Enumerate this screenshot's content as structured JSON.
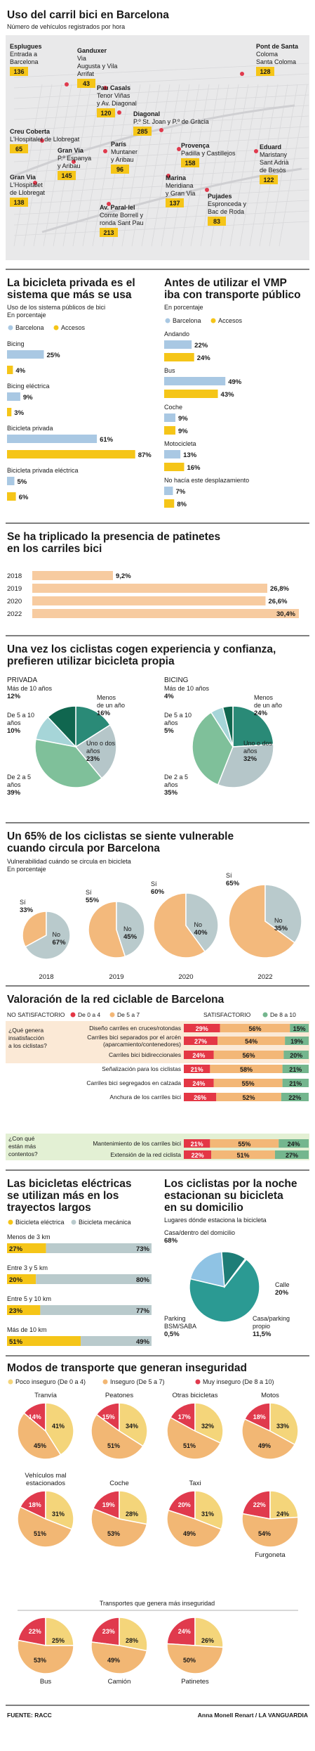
{
  "colors": {
    "barcelona": "#a9c8e3",
    "accesos": "#f5c518",
    "map_bg": "#e9e9ea",
    "pos1": "#f4d57a",
    "pos2": "#f2b774",
    "pos3": "#e03a4d",
    "p_dark": "#10664f",
    "p_mid": "#2a8a77",
    "p_light": "#a6d5d8",
    "p_green": "#7fc09a",
    "p_grey": "#b5c6c9",
    "peach": "#f7cba0",
    "vuln_orange": "#f3b97c",
    "vuln_grey": "#b9cacc",
    "red": "#e43745",
    "orange": "#f3b777",
    "green": "#74b68e",
    "tealdk": "#1e7d77",
    "tealmd": "#2b9a93",
    "blue": "#8fc3e4"
  },
  "s1": {
    "title": "Uso del carril bici en Barcelona",
    "subtitle": "Número de vehículos registrados por hora",
    "labels": [
      {
        "name": "Esplugues",
        "lines": [
          "Entrada a",
          "Barcelona"
        ],
        "value": "136"
      },
      {
        "name": "Ganduxer",
        "lines": [
          "Via",
          "Augusta y Vila",
          "Arrifat"
        ],
        "value": "43"
      },
      {
        "name": "Pau Casals",
        "lines": [
          "Tenor Viñas",
          "y Av. Diagonal"
        ],
        "value": "120"
      },
      {
        "name": "Diagonal",
        "lines": [
          "P.º St. Joan y P.º de Gràcia"
        ],
        "value": "285"
      },
      {
        "name": "Pont de Santa",
        "lines": [
          "Coloma",
          "Santa Coloma"
        ],
        "value": "128"
      },
      {
        "name": "Creu Coberta",
        "lines": [
          "L'Hospitalet de Llobregat"
        ],
        "value": "65"
      },
      {
        "name": "Gran Via",
        "lines": [
          "P.º Espanya",
          "y Aribau"
        ],
        "value": "145"
      },
      {
        "name": "París",
        "lines": [
          "Muntaner",
          "y Aribau"
        ],
        "value": "96"
      },
      {
        "name": "Provença",
        "lines": [
          "Padilla y Castillejos"
        ],
        "value": "158"
      },
      {
        "name": "Eduard",
        "lines": [
          "Maristany",
          "Sant Adrià",
          "de Besòs"
        ],
        "value": "122"
      },
      {
        "name": "Gran Via",
        "lines": [
          "L'Hospitalet",
          "de Llobregat"
        ],
        "value": "138"
      },
      {
        "name": "Marina",
        "lines": [
          "Meridiana",
          "y Gran Via"
        ],
        "value": "137"
      },
      {
        "name": "Pujades",
        "lines": [
          "Espronceda y",
          "Bac de Roda"
        ],
        "value": "83"
      },
      {
        "name": "Av. Paral·lel",
        "lines": [
          "Comte Borrell y",
          "ronda Sant Pau"
        ],
        "value": "213"
      }
    ]
  },
  "s2": {
    "title": [
      "La bicicleta privada es el",
      "sistema que más se usa"
    ],
    "subtitle": [
      "Uso de los sistema públicos de bici",
      "En porcentaje"
    ],
    "legend": [
      "Barcelona",
      "Accesos"
    ],
    "chart_data": {
      "type": "bar",
      "categories": [
        "Bicing",
        "Bicing eléctrica",
        "Bicicleta privada",
        "Bicicleta privada eléctrica"
      ],
      "series": [
        {
          "name": "Barcelona",
          "values": [
            25,
            9,
            61,
            5
          ]
        },
        {
          "name": "Accesos",
          "values": [
            4,
            3,
            87,
            6
          ]
        }
      ],
      "labels": [
        [
          "25%",
          "4%"
        ],
        [
          "9%",
          "3%"
        ],
        [
          "61%",
          "87%"
        ],
        [
          "5%",
          "6%"
        ]
      ]
    }
  },
  "s3": {
    "title": [
      "Antes de utilizar el VMP",
      "iba con transporte público"
    ],
    "subtitle": "En porcentaje",
    "legend": [
      "Barcelona",
      "Accesos"
    ],
    "chart_data": {
      "type": "bar",
      "categories": [
        "Andando",
        "Bus",
        "Coche",
        "Motocicleta",
        "No hacía este desplazamiento"
      ],
      "series": [
        {
          "name": "Barcelona",
          "values": [
            22,
            49,
            9,
            13,
            7
          ]
        },
        {
          "name": "Accesos",
          "values": [
            24,
            43,
            9,
            16,
            8
          ]
        }
      ],
      "labels": [
        [
          "22%",
          "24%"
        ],
        [
          "49%",
          "43%"
        ],
        [
          "9%",
          "9%"
        ],
        [
          "13%",
          "16%"
        ],
        [
          "7%",
          "8%"
        ]
      ]
    }
  },
  "s4": {
    "title": [
      "Se ha triplicado la presencia de patinetes",
      "en los carriles bici"
    ],
    "chart_data": {
      "type": "bar",
      "categories": [
        "2018",
        "2019",
        "2020",
        "2022"
      ],
      "values": [
        9.2,
        26.8,
        26.6,
        30.4
      ],
      "labels": [
        "9,2%",
        "26,8%",
        "26,6%",
        "30,4%"
      ]
    }
  },
  "s5": {
    "title": [
      "Una vez los ciclistas cogen experiencia y confianza,",
      "prefieren utilizar bicicleta propia"
    ],
    "chart_data": [
      {
        "type": "pie",
        "title": "PRIVADA",
        "slices": [
          {
            "label": [
              "Menos",
              "de un año"
            ],
            "value": 16,
            "text": "16%"
          },
          {
            "label": [
              "Uno o dos",
              "años"
            ],
            "value": 23,
            "text": "23%"
          },
          {
            "label": [
              "De 2 a 5",
              "años"
            ],
            "value": 39,
            "text": "39%"
          },
          {
            "label": [
              "De 5 a 10",
              "años"
            ],
            "value": 10,
            "text": "10%"
          },
          {
            "label": [
              "Más de 10 años"
            ],
            "value": 12,
            "text": "12%"
          }
        ]
      },
      {
        "type": "pie",
        "title": "BICING",
        "slices": [
          {
            "label": [
              "Menos",
              "de un año"
            ],
            "value": 24,
            "text": "24%"
          },
          {
            "label": [
              "Uno o dos",
              "años"
            ],
            "value": 32,
            "text": "32%"
          },
          {
            "label": [
              "De 2 a 5",
              "años"
            ],
            "value": 35,
            "text": "35%"
          },
          {
            "label": [
              "De 5 a 10",
              "años"
            ],
            "value": 5,
            "text": "5%"
          },
          {
            "label": [
              "Más de 10 años"
            ],
            "value": 4,
            "text": "4%"
          }
        ]
      }
    ]
  },
  "s6": {
    "title": [
      "Un 65% de los ciclistas se siente vulnerable",
      "cuando circula por Barcelona"
    ],
    "subtitle": [
      "Vulnerabilidad cuándo se circula en bicicleta",
      "En porcentaje"
    ],
    "chart_data": {
      "type": "pie",
      "categories": [
        "2018",
        "2019",
        "2020",
        "2022"
      ],
      "series": [
        {
          "name": "Sí",
          "values": [
            33,
            55,
            60,
            65
          ]
        },
        {
          "name": "No",
          "values": [
            67,
            45,
            40,
            35
          ]
        }
      ],
      "si_label": "Sí",
      "no_label": "No",
      "labels": [
        [
          "33%",
          "67%"
        ],
        [
          "55%",
          "45%"
        ],
        [
          "60%",
          "40%"
        ],
        [
          "65%",
          "35%"
        ]
      ]
    }
  },
  "s7": {
    "title": "Valoración de la red ciclable de Barcelona",
    "legend": [
      "NO SATISFACTORIO",
      "De 0 a 4",
      "De 5 a 7",
      "SATISFACTORIO",
      "De 8 a 10"
    ],
    "q1": [
      "¿Qué genera",
      "insatisfacción",
      "a los ciclistas?"
    ],
    "q2": [
      "¿Con qué",
      "están más",
      "contentos?"
    ],
    "chart_data": {
      "type": "bar",
      "categories": [
        [
          "Diseño carriles en cruces/rotondas"
        ],
        [
          "Carriles bici separados por el arcén",
          "(aparcamiento/contenedores)"
        ],
        [
          "Carriles bici bidireccionales"
        ],
        [
          "Señalización para los ciclistas"
        ],
        [
          "Carriles bici segregados en calzada"
        ],
        [
          "Anchura de los carriles bici"
        ],
        [
          "Mantenimiento de los carriles bici"
        ],
        [
          "Extensión de la red ciclista"
        ]
      ],
      "series": [
        {
          "name": "De 0 a 4",
          "values": [
            29,
            27,
            24,
            21,
            24,
            26,
            21,
            22
          ]
        },
        {
          "name": "De 5 a 7",
          "values": [
            56,
            54,
            56,
            58,
            55,
            52,
            55,
            51
          ]
        },
        {
          "name": "De 8 a 10",
          "values": [
            15,
            19,
            20,
            21,
            21,
            22,
            24,
            27
          ]
        }
      ],
      "labels": [
        [
          "29%",
          "56%",
          "15%"
        ],
        [
          "27%",
          "54%",
          "19%"
        ],
        [
          "24%",
          "56%",
          "20%"
        ],
        [
          "21%",
          "58%",
          "21%"
        ],
        [
          "24%",
          "55%",
          "21%"
        ],
        [
          "26%",
          "52%",
          "22%"
        ],
        [
          "21%",
          "55%",
          "24%"
        ],
        [
          "22%",
          "51%",
          "27%"
        ]
      ]
    }
  },
  "s8": {
    "title": [
      "Las bicicletas eléctricas",
      "se utilizan más en los",
      "trayectos largos"
    ],
    "legend": [
      "Bicicleta eléctrica",
      "Bicicleta mecánica"
    ],
    "chart_data": {
      "type": "bar",
      "categories": [
        "Menos de 3 km",
        "Entre 3 y 5 km",
        "Entre 5 y 10 km",
        "Más de 10 km"
      ],
      "series": [
        {
          "name": "Bicicleta eléctrica",
          "values": [
            27,
            20,
            23,
            51
          ]
        },
        {
          "name": "Bicicleta mecánica",
          "values": [
            73,
            80,
            77,
            49
          ]
        }
      ],
      "labels": [
        [
          "27%",
          "73%"
        ],
        [
          "20%",
          "80%"
        ],
        [
          "23%",
          "77%"
        ],
        [
          "51%",
          "49%"
        ]
      ]
    }
  },
  "s9": {
    "title": [
      "Los ciclistas por la noche",
      "estacionan su bicicleta",
      "en su domicilio"
    ],
    "subtitle": "Lugares dónde estaciona la bicicleta",
    "chart_data": {
      "type": "pie",
      "slices": [
        {
          "label": [
            "Casa/dentro del domicilio"
          ],
          "text": "68%",
          "value": 68
        },
        {
          "label": [
            "Calle"
          ],
          "text": "20%",
          "value": 20
        },
        {
          "label": [
            "Casa/parking",
            "propio"
          ],
          "text": "11,5%",
          "value": 11.5
        },
        {
          "label": [
            "Parking",
            "BSM/SABA"
          ],
          "text": "0,5%",
          "value": 0.5
        }
      ]
    }
  },
  "s10": {
    "title": "Modos de transporte que generan inseguridad",
    "legend": [
      "Poco inseguro (De 0 a 4)",
      "Inseguro (De 5 a 7)",
      "Muy inseguro (De 8 a 10)"
    ],
    "subtitle2": "Transportes que genera más inseguridad",
    "chart_data": {
      "type": "pie",
      "series_names": [
        "Poco inseguro",
        "Inseguro",
        "Muy inseguro"
      ],
      "items": [
        {
          "name": [
            "Tranvía"
          ],
          "values": [
            41,
            45,
            14
          ],
          "labels": [
            "41%",
            "45%",
            "14%"
          ]
        },
        {
          "name": [
            "Peatones"
          ],
          "values": [
            34,
            51,
            15
          ],
          "labels": [
            "34%",
            "51%",
            "15%"
          ]
        },
        {
          "name": [
            "Otras bicicletas"
          ],
          "values": [
            32,
            51,
            17
          ],
          "labels": [
            "32%",
            "51%",
            "17%"
          ]
        },
        {
          "name": [
            "Motos"
          ],
          "values": [
            33,
            49,
            18
          ],
          "labels": [
            "33%",
            "49%",
            "18%"
          ]
        },
        {
          "name": [
            "Vehículos mal",
            "estacionados"
          ],
          "values": [
            31,
            51,
            18
          ],
          "labels": [
            "31%",
            "51%",
            "18%"
          ]
        },
        {
          "name": [
            "Coche"
          ],
          "values": [
            28,
            53,
            19
          ],
          "labels": [
            "28%",
            "53%",
            "19%"
          ]
        },
        {
          "name": [
            "Taxi"
          ],
          "values": [
            31,
            49,
            20
          ],
          "labels": [
            "31%",
            "49%",
            "20%"
          ]
        },
        {
          "name": [
            "Furgoneta"
          ],
          "values": [
            24,
            54,
            22
          ],
          "labels": [
            "24%",
            "54%",
            "22%"
          ]
        },
        {
          "name": [
            "Bus"
          ],
          "values": [
            25,
            53,
            22
          ],
          "labels": [
            "25%",
            "53%",
            "22%"
          ]
        },
        {
          "name": [
            "Camión"
          ],
          "values": [
            28,
            49,
            23
          ],
          "labels": [
            "28%",
            "49%",
            "23%"
          ]
        },
        {
          "name": [
            "Patinetes"
          ],
          "values": [
            26,
            50,
            24
          ],
          "labels": [
            "26%",
            "50%",
            "24%"
          ]
        }
      ]
    }
  },
  "footer": {
    "source": "FUENTE: RACC",
    "credit": "Anna Monell Renart / LA VANGUARDIA"
  }
}
